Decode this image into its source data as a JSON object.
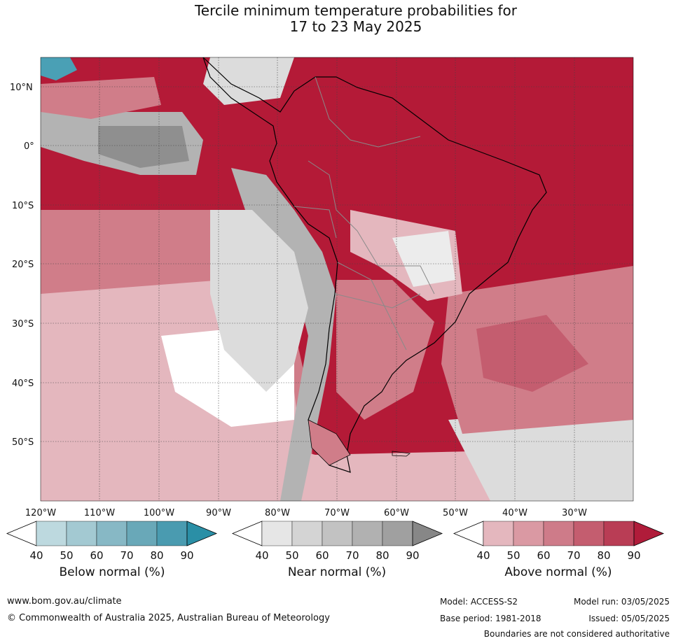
{
  "title": {
    "line1": "Tercile minimum temperature probabilities for",
    "line2": "17 to 23 May 2025"
  },
  "map": {
    "region": "South America",
    "lat_labels": [
      "10°N",
      "0°",
      "10°S",
      "20°S",
      "30°S",
      "40°S",
      "50°S"
    ],
    "lon_labels": [
      "120°W",
      "110°W",
      "100°W",
      "90°W",
      "80°W",
      "70°W",
      "60°W",
      "50°W",
      "40°W",
      "30°W"
    ],
    "colors": {
      "ocean_above": "#b41a37",
      "above_60": "#d07d89",
      "above_40": "#e4b7be",
      "near": "#b3b3b3",
      "near_light": "#dcdcdc",
      "below": "#4aa0b5",
      "coast": "#000000",
      "border": "#8a8a8a"
    }
  },
  "colorbars": [
    {
      "label": "Below normal (%)",
      "ticks": [
        "40",
        "50",
        "60",
        "70",
        "80",
        "90"
      ],
      "colors": [
        "#ffffff",
        "#bdd9df",
        "#a3c9d2",
        "#87b8c5",
        "#69a8b8",
        "#4a9bb0",
        "#2a8fa6"
      ]
    },
    {
      "label": "Near normal (%)",
      "ticks": [
        "40",
        "50",
        "60",
        "70",
        "80",
        "90"
      ],
      "colors": [
        "#ffffff",
        "#e6e6e6",
        "#d4d4d4",
        "#c2c2c2",
        "#b1b1b1",
        "#a0a0a0",
        "#878787"
      ]
    },
    {
      "label": "Above normal (%)",
      "ticks": [
        "40",
        "50",
        "60",
        "70",
        "80",
        "90"
      ],
      "colors": [
        "#ffffff",
        "#e4b7be",
        "#da99a3",
        "#ce7b89",
        "#c45d6f",
        "#b93d55",
        "#b01c3a"
      ]
    }
  ],
  "footer": {
    "website": "www.bom.gov.au/climate",
    "copyright": "© Commonwealth of Australia 2025, Australian Bureau of Meteorology",
    "model": "Model: ACCESS-S2",
    "base_period": "Base period: 1981-2018",
    "model_run": "Model run: 03/05/2025",
    "issued": "Issued: 05/05/2025",
    "disclaimer": "Boundaries are not considered authoritative"
  }
}
